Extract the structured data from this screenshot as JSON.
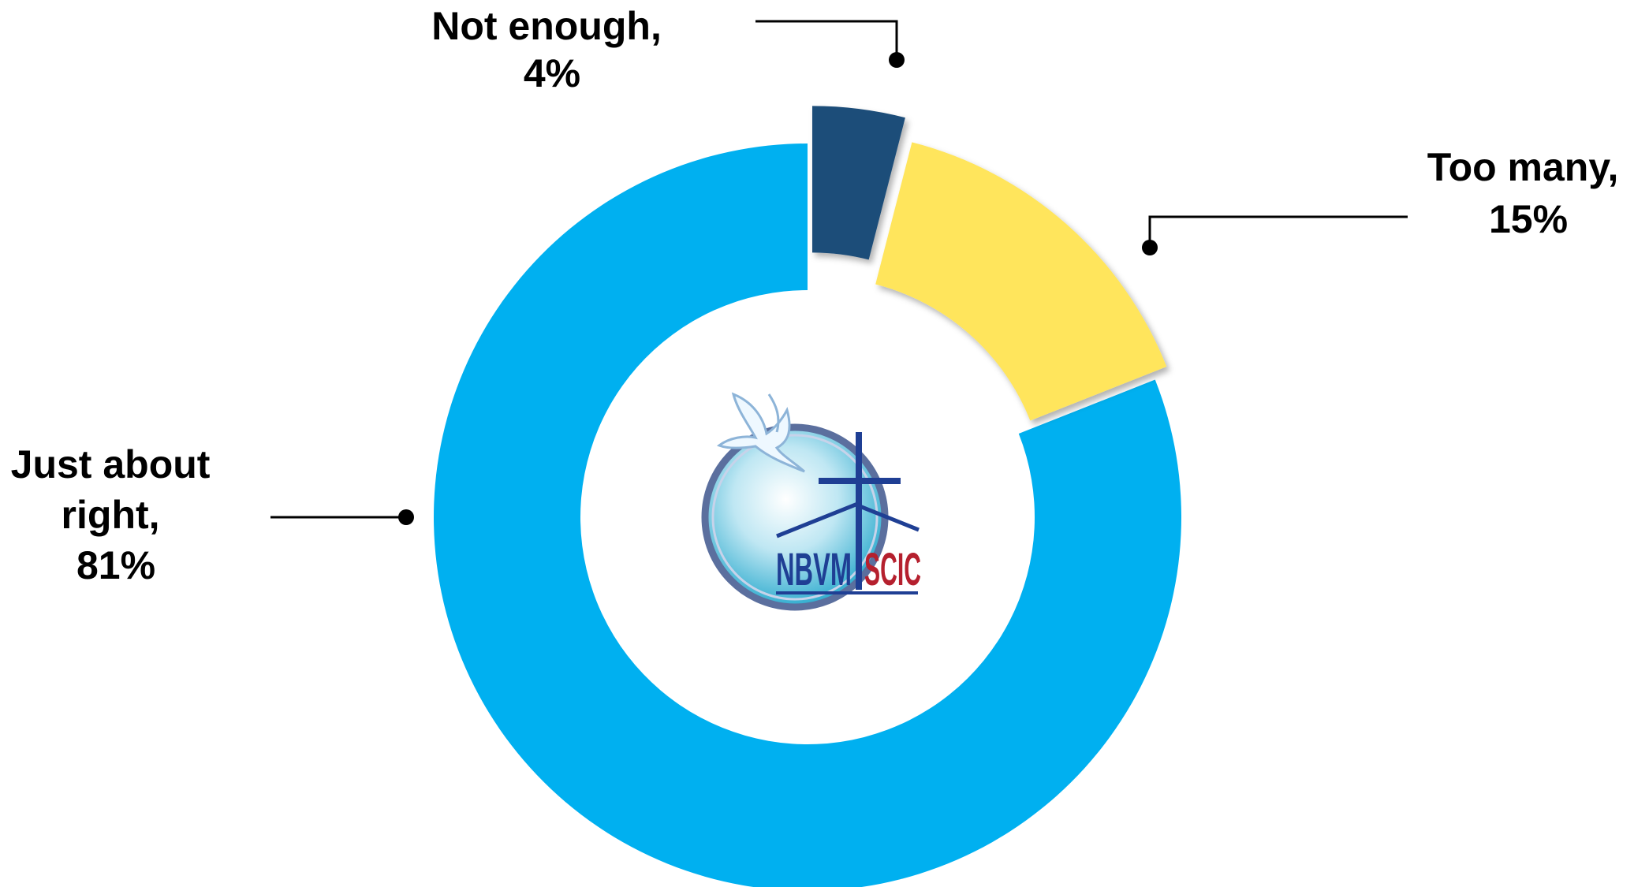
{
  "chart_data": {
    "type": "pie",
    "variant": "donut",
    "title": "",
    "slices": [
      {
        "label": "Just about right",
        "value": 81,
        "label_text": [
          "Just about",
          "right,",
          "81%"
        ],
        "color": "#00b0f0"
      },
      {
        "label": "Not enough",
        "value": 4,
        "label_text": [
          "Not enough,",
          "4%"
        ],
        "color": "#1f4e79"
      },
      {
        "label": "Too many",
        "value": 15,
        "label_text": [
          "Too many,",
          "15%"
        ],
        "color": "#ffe55c"
      }
    ],
    "legend": "none",
    "center_logo": {
      "text_left": "NBVM",
      "text_right": "SCIC"
    }
  }
}
